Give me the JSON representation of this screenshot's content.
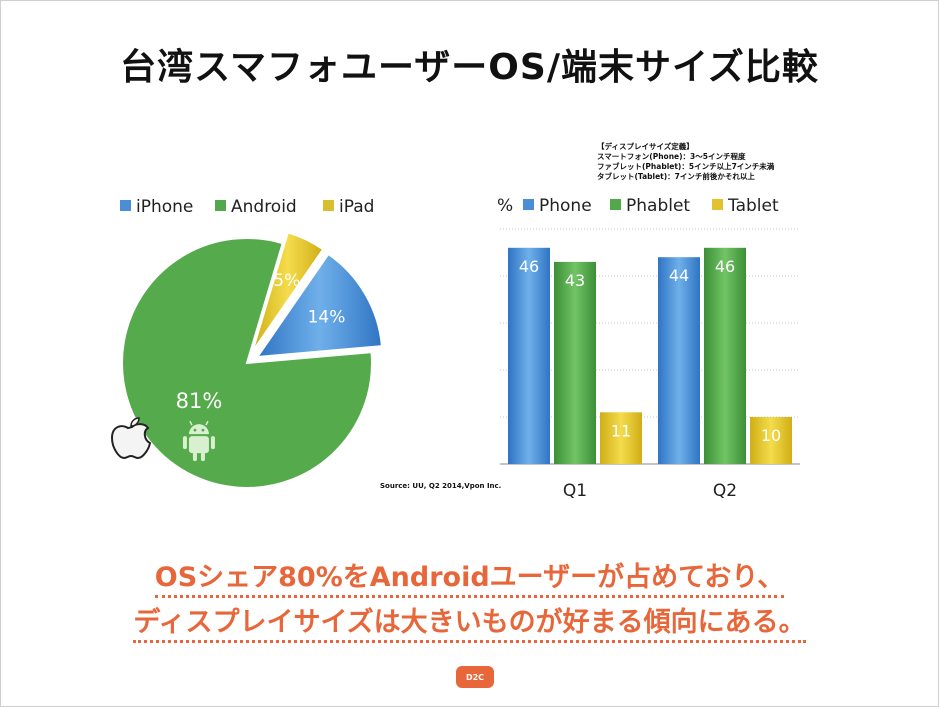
{
  "title": "台湾スマフォユーザーOS/端末サイズ比較",
  "definition": {
    "heading": "【ディスプレイサイズ定義】",
    "lines": [
      "スマートフォン(Phone)：3〜5インチ程度",
      "ファブレット(Phablet)：5インチ以上7インチ未満",
      "タブレット(Tablet)：7インチ前後かそれ以上"
    ]
  },
  "source": "Source: UU, Q2 2014,Vpon Inc.",
  "conclusion": {
    "line1": "OSシェア80%をAndroidユーザーが占めており、",
    "line2": "ディスプレイサイズは大きいものが好まる傾向にある。"
  },
  "logo_text": "D2C",
  "chart_data": [
    {
      "type": "pie",
      "title": "",
      "slices": [
        {
          "name": "iPhone",
          "value": 14,
          "label": "14%",
          "color": "#4a8fd6",
          "icon": "apple-logo-icon"
        },
        {
          "name": "Android",
          "value": 81,
          "label": "81%",
          "color": "#52a84a",
          "icon": "android-robot-icon"
        },
        {
          "name": "iPad",
          "value": 5,
          "label": "5%",
          "color": "#d9bf2e"
        }
      ],
      "legend": [
        "iPhone",
        "Android",
        "iPad"
      ],
      "legend_position": "top"
    },
    {
      "type": "bar",
      "title": "",
      "ylabel": "%",
      "categories": [
        "Q1",
        "Q2"
      ],
      "series": [
        {
          "name": "Phone",
          "values": [
            46,
            44
          ],
          "color": "#4a8fd6"
        },
        {
          "name": "Phablet",
          "values": [
            43,
            46
          ],
          "color": "#52a84a"
        },
        {
          "name": "Tablet",
          "values": [
            11,
            10
          ],
          "color": "#e2c22e"
        }
      ],
      "ylim": [
        0,
        50
      ],
      "grid": true,
      "legend_position": "top"
    }
  ]
}
